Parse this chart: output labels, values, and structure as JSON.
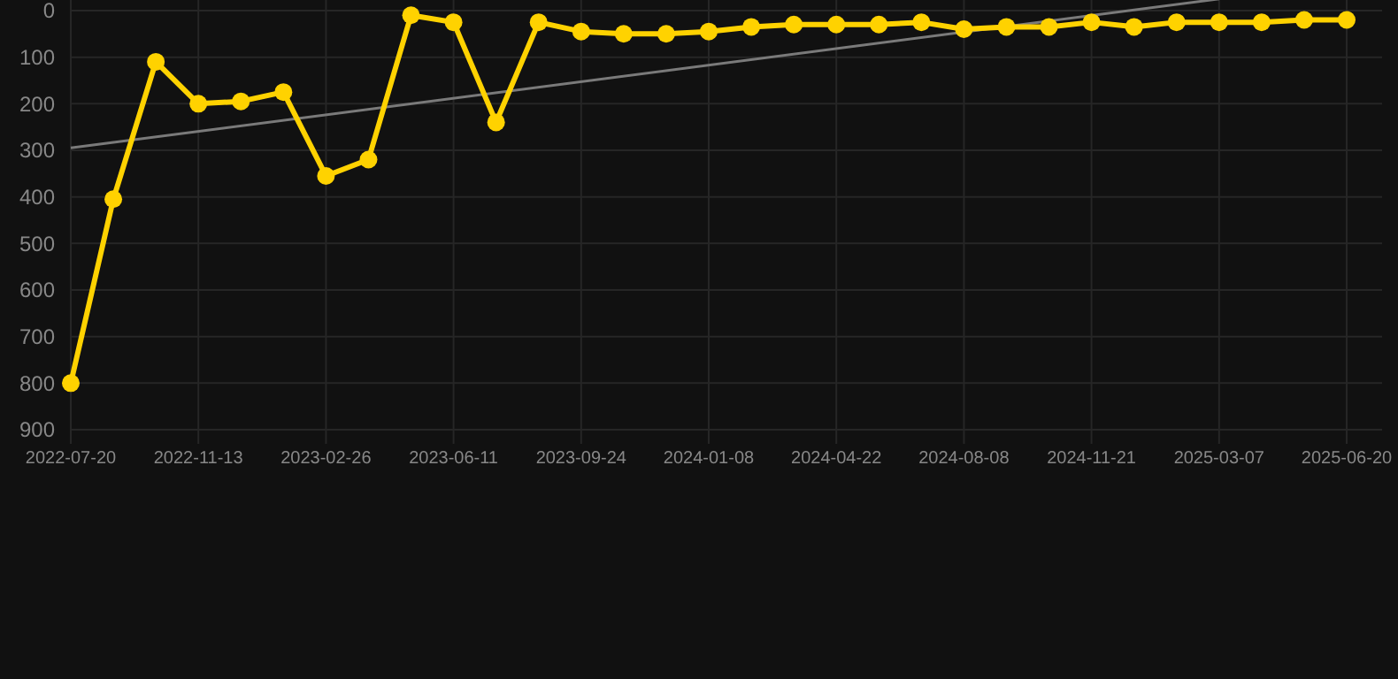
{
  "chart_data": {
    "type": "line",
    "categories": [
      "2022-07-20",
      null,
      null,
      "2022-11-13",
      null,
      null,
      "2023-02-26",
      null,
      null,
      "2023-06-11",
      null,
      null,
      "2023-09-24",
      null,
      null,
      "2024-01-08",
      null,
      null,
      "2024-04-22",
      null,
      null,
      "2024-08-08",
      null,
      null,
      "2024-11-21",
      null,
      null,
      "2025-03-07",
      null,
      null,
      "2025-06-20"
    ],
    "series": [
      {
        "color": "#ffd200",
        "marker": "circle",
        "values": [
          800,
          405,
          110,
          200,
          195,
          175,
          355,
          320,
          10,
          25,
          240,
          25,
          45,
          50,
          50,
          45,
          35,
          30,
          30,
          30,
          25,
          40,
          35,
          35,
          25,
          35,
          25,
          25,
          25,
          20,
          20
        ]
      },
      {
        "color": "#7a7a7a",
        "marker": "none",
        "values": [
          295,
          null,
          null,
          null,
          null,
          null,
          null,
          null,
          null,
          null,
          null,
          null,
          null,
          null,
          null,
          null,
          null,
          null,
          null,
          null,
          null,
          null,
          null,
          null,
          null,
          null,
          null,
          -25,
          null,
          null,
          null
        ]
      }
    ],
    "ylim": [
      900,
      -25
    ],
    "yticks": [
      0,
      100,
      200,
      300,
      400,
      500,
      600,
      700,
      800,
      900
    ],
    "grid": true
  }
}
